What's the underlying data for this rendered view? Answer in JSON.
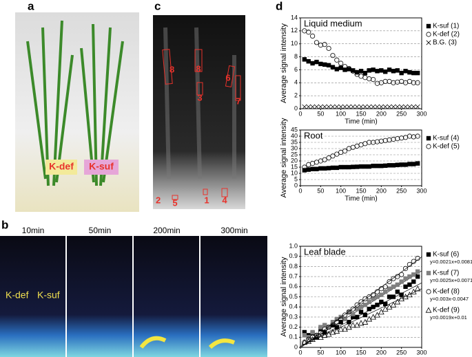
{
  "panels": {
    "letters": [
      "a",
      "b",
      "c",
      "d"
    ],
    "photo_labels": [
      "K-def",
      "K-suf"
    ],
    "time_labels": [
      "10min",
      "50min",
      "200min",
      "300min"
    ],
    "image_labels": [
      "K-def",
      "K-suf"
    ],
    "roi_labels": [
      "8",
      "8",
      "3",
      "6",
      "7",
      "2",
      "5",
      "1",
      "4"
    ]
  },
  "chart_data": [
    {
      "type": "scatter",
      "title": "Liquid medium",
      "xlabel": "Time (min)",
      "ylabel": "Average signal intensity",
      "xlim": [
        0,
        300
      ],
      "xticks": [
        0,
        50,
        100,
        150,
        200,
        250,
        300
      ],
      "ylim": [
        0,
        14
      ],
      "yticks": [
        0,
        2,
        4,
        6,
        8,
        10,
        12,
        14
      ],
      "grid": true,
      "legend": "right",
      "x": [
        10,
        20,
        30,
        40,
        50,
        60,
        70,
        80,
        90,
        100,
        110,
        120,
        130,
        140,
        150,
        160,
        170,
        180,
        190,
        200,
        210,
        220,
        230,
        240,
        250,
        260,
        270,
        280,
        290
      ],
      "series": [
        {
          "name": "K-suf (1)",
          "marker": "square",
          "color": "#000000",
          "values": [
            7.6,
            7.3,
            7.0,
            7.2,
            6.9,
            6.8,
            6.7,
            6.4,
            6.1,
            6.3,
            6.0,
            6.1,
            5.9,
            5.6,
            5.8,
            5.5,
            5.9,
            6.0,
            5.8,
            5.9,
            5.7,
            6.0,
            5.8,
            5.9,
            5.5,
            5.8,
            5.6,
            5.5,
            5.5
          ]
        },
        {
          "name": "K-def (2)",
          "marker": "circle",
          "color": "#000000",
          "values": [
            12,
            11.8,
            11.2,
            10.2,
            9.8,
            9.9,
            9.3,
            8.2,
            7.5,
            7,
            6.5,
            6.2,
            5.8,
            5.3,
            5,
            4.8,
            4.6,
            4.5,
            3.9,
            4,
            4.2,
            4.2,
            4,
            4.1,
            4.2,
            4,
            4.2,
            4,
            4
          ]
        },
        {
          "name": "B.G. (3)",
          "marker": "cross",
          "color": "#000000",
          "values": [
            0.3,
            0.3,
            0.3,
            0.3,
            0.3,
            0.3,
            0.3,
            0.3,
            0.3,
            0.3,
            0.3,
            0.3,
            0.3,
            0.3,
            0.3,
            0.3,
            0.3,
            0.3,
            0.3,
            0.3,
            0.3,
            0.3,
            0.3,
            0.3,
            0.3,
            0.3,
            0.3,
            0.3,
            0.3
          ]
        }
      ]
    },
    {
      "type": "scatter",
      "title": "Root",
      "xlabel": "Time (min)",
      "ylabel": "Average signal intensity",
      "xlim": [
        0,
        300
      ],
      "xticks": [
        0,
        50,
        100,
        150,
        200,
        250,
        300
      ],
      "ylim": [
        0,
        45
      ],
      "yticks": [
        0,
        5,
        10,
        15,
        20,
        25,
        30,
        35,
        40,
        45
      ],
      "grid": true,
      "legend": "right",
      "x": [
        10,
        20,
        30,
        40,
        50,
        60,
        70,
        80,
        90,
        100,
        110,
        120,
        130,
        140,
        150,
        160,
        170,
        180,
        190,
        200,
        210,
        220,
        230,
        240,
        250,
        260,
        270,
        280,
        290
      ],
      "series": [
        {
          "name": "K-suf (4)",
          "marker": "square",
          "color": "#000000",
          "values": [
            12.5,
            13,
            13.5,
            13.5,
            14,
            14,
            14.2,
            14.5,
            14.5,
            15,
            15,
            15,
            15.2,
            15.3,
            15.5,
            15.5,
            15.5,
            16,
            16,
            16,
            16.2,
            16.5,
            16.5,
            16.8,
            17,
            17,
            17.5,
            17.5,
            18
          ]
        },
        {
          "name": "K-def (5)",
          "marker": "circle",
          "color": "#000000",
          "values": [
            15,
            17,
            18,
            19,
            20,
            21,
            22.5,
            24,
            25.5,
            27,
            28,
            30,
            31,
            32,
            33,
            34,
            35,
            35,
            35.5,
            36,
            36.5,
            37,
            37.5,
            38,
            38.5,
            39,
            40,
            39.5,
            40
          ]
        }
      ]
    },
    {
      "type": "scatter",
      "title": "Leaf blade",
      "xlabel": "Time (min)",
      "ylabel": "Average signal intensity",
      "xlim": [
        0,
        300
      ],
      "xticks": [
        0,
        50,
        100,
        150,
        200,
        250,
        300
      ],
      "ylim": [
        0,
        1
      ],
      "yticks": [
        0,
        0.1,
        0.2,
        0.3,
        0.4,
        0.5,
        0.6,
        0.7,
        0.8,
        0.9,
        {
          "value": 1,
          "label": "1.0"
        }
      ],
      "grid": true,
      "legend": "right",
      "x": [
        10,
        20,
        30,
        40,
        50,
        60,
        70,
        80,
        90,
        100,
        110,
        120,
        130,
        140,
        150,
        160,
        170,
        180,
        190,
        200,
        210,
        220,
        230,
        240,
        250,
        260,
        270,
        280,
        290
      ],
      "series": [
        {
          "name": "K-suf (6)",
          "marker": "square",
          "color": "#000000",
          "fit": [
            0.0021,
            0.0081
          ],
          "fit_label": "y=0.0021x+0.0081",
          "values": [
            0.15,
            0.12,
            0.14,
            0.1,
            0.18,
            0.15,
            0.2,
            0.22,
            0.2,
            0.25,
            0.28,
            0.25,
            0.3,
            0.3,
            0.35,
            0.32,
            0.38,
            0.4,
            0.42,
            0.45,
            0.43,
            0.5,
            0.5,
            0.55,
            0.52,
            0.6,
            0.62,
            0.65,
            0.7
          ]
        },
        {
          "name": "K-suf (7)",
          "marker": "square",
          "color": "#808080",
          "fit": [
            0.0025,
            0.0071
          ],
          "fit_label": "y=0.0025x+0.0071",
          "values": [
            0.12,
            0.1,
            0.15,
            0.12,
            0.2,
            0.22,
            0.2,
            0.25,
            0.28,
            0.3,
            0.28,
            0.35,
            0.33,
            0.38,
            0.4,
            0.42,
            0.45,
            0.48,
            0.5,
            0.52,
            0.55,
            0.58,
            0.6,
            0.62,
            0.65,
            0.68,
            0.7,
            0.72,
            0.75
          ]
        },
        {
          "name": "K-def (8)",
          "marker": "circle",
          "color": "#000000",
          "fit": [
            0.003,
            -0.0047
          ],
          "fit_label": "y=0.003x-0.0047",
          "values": [
            0.05,
            0.08,
            0.1,
            0.12,
            0.15,
            0.18,
            0.2,
            0.22,
            0.25,
            0.28,
            0.32,
            0.35,
            0.38,
            0.42,
            0.45,
            0.48,
            0.5,
            0.52,
            0.55,
            0.58,
            0.6,
            0.65,
            0.68,
            0.7,
            0.72,
            0.78,
            0.82,
            0.85,
            0.88
          ]
        },
        {
          "name": "K-def (9)",
          "marker": "triangle",
          "color": "#000000",
          "fit": [
            0.0019,
            0.01
          ],
          "fit_label": "y=0.0019x+0.01",
          "values": [
            0.05,
            0.06,
            0.08,
            0.1,
            0.1,
            0.12,
            0.13,
            0.15,
            0.16,
            0.18,
            0.18,
            0.2,
            0.22,
            0.22,
            0.24,
            0.25,
            0.28,
            0.3,
            0.32,
            0.35,
            0.38,
            0.4,
            0.42,
            0.45,
            0.48,
            0.5,
            0.52,
            0.55,
            0.58
          ]
        }
      ]
    }
  ]
}
